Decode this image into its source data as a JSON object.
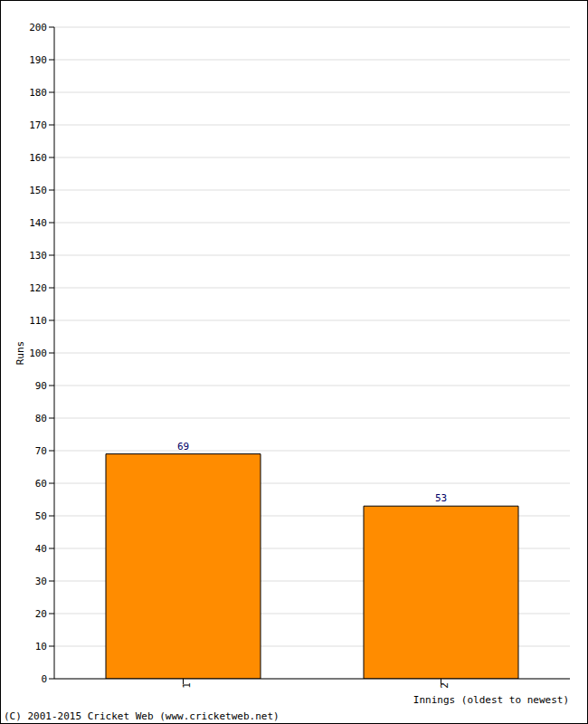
{
  "chart_data": {
    "type": "bar",
    "categories": [
      "1",
      "2"
    ],
    "values": [
      69,
      53
    ],
    "color": "#ff8c00",
    "ylim": [
      0,
      200
    ],
    "yticks": [
      0,
      10,
      20,
      30,
      40,
      50,
      60,
      70,
      80,
      90,
      100,
      110,
      120,
      130,
      140,
      150,
      160,
      170,
      180,
      190,
      200
    ],
    "grid": true,
    "data_labels": true,
    "y_label": "Runs",
    "x_label": "Innings (oldest to newest)",
    "annotations": [
      "(C) 2001-2015 Cricket Web (www.cricketweb.net)"
    ]
  }
}
